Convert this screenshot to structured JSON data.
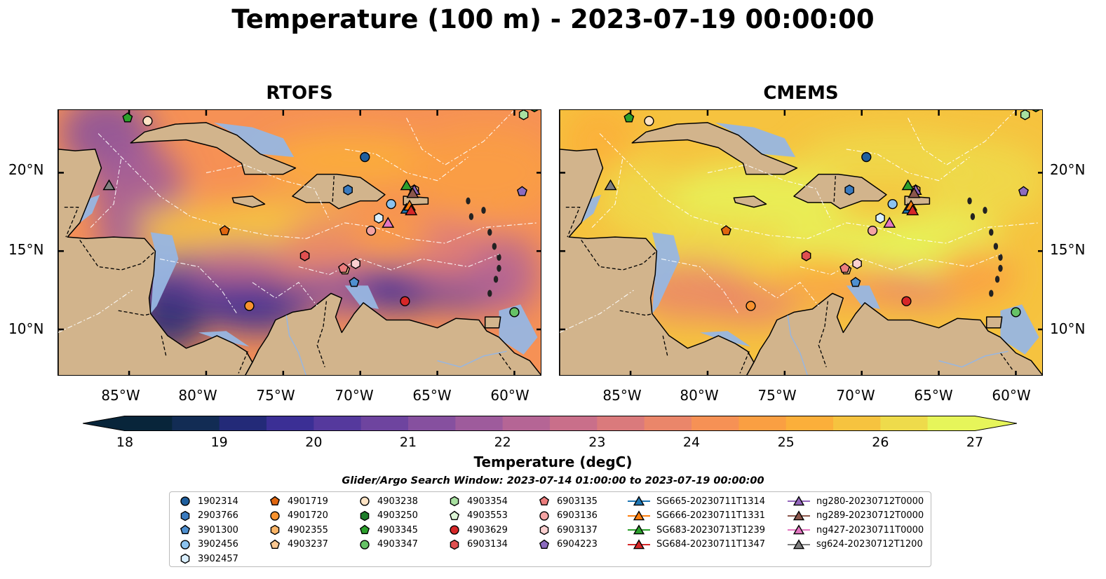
{
  "title": "Temperature (100 m) - 2023-07-19 00:00:00",
  "panels": [
    {
      "title": "RTOFS",
      "scheme": "rtofs"
    },
    {
      "title": "CMEMS",
      "scheme": "cmems"
    }
  ],
  "lat_labels": [
    "20°N",
    "15°N",
    "10°N"
  ],
  "lon_labels": [
    "85°W",
    "80°W",
    "75°W",
    "70°W",
    "65°W",
    "60°W"
  ],
  "colors": {
    "land": "#d2b48c",
    "shallow": "#97b6e1",
    "colormap": [
      "#08253a",
      "#122c54",
      "#232a78",
      "#3b2f95",
      "#55399d",
      "#6e449f",
      "#86509f",
      "#9e5b9c",
      "#b56595",
      "#c96f8a",
      "#da7a7c",
      "#ea866a",
      "#f69155",
      "#fa9f42",
      "#fbaf3a",
      "#f6c33f",
      "#eedb4b",
      "#e6f55a"
    ]
  },
  "colorbar": {
    "ticks": [
      "18",
      "19",
      "20",
      "21",
      "22",
      "23",
      "24",
      "25",
      "26",
      "27"
    ],
    "label": "Temperature (degC)"
  },
  "legend": {
    "title": "Glider/Argo Search Window: 2023-07-14 01:00:00 to 2023-07-19 00:00:00",
    "items": [
      {
        "label": "1902314",
        "marker": "circle",
        "color": "#1f5f9e",
        "type": "argo"
      },
      {
        "label": "2903766",
        "marker": "hexagon",
        "color": "#3b7bbf",
        "type": "argo"
      },
      {
        "label": "3901300",
        "marker": "pentagon",
        "color": "#4f90d0",
        "type": "argo"
      },
      {
        "label": "3902456",
        "marker": "circle",
        "color": "#8cc3ef",
        "type": "argo"
      },
      {
        "label": "3902457",
        "marker": "hexagon",
        "color": "#d9efff",
        "type": "argo"
      },
      {
        "label": "4901719",
        "marker": "pentagon",
        "color": "#e0660f",
        "type": "argo"
      },
      {
        "label": "4901720",
        "marker": "circle",
        "color": "#f8922e",
        "type": "argo"
      },
      {
        "label": "4902355",
        "marker": "hexagon",
        "color": "#fab466",
        "type": "argo"
      },
      {
        "label": "4903237",
        "marker": "pentagon",
        "color": "#fcc891",
        "type": "argo"
      },
      {
        "label": "4903238",
        "marker": "circle",
        "color": "#fee3c4",
        "type": "argo"
      },
      {
        "label": "4903250",
        "marker": "hexagon",
        "color": "#1e7d2a",
        "type": "argo"
      },
      {
        "label": "4903345",
        "marker": "pentagon",
        "color": "#2ca02c",
        "type": "argo"
      },
      {
        "label": "4903347",
        "marker": "circle",
        "color": "#66c266",
        "type": "argo"
      },
      {
        "label": "4903354",
        "marker": "hexagon",
        "color": "#a8e0a0",
        "type": "argo"
      },
      {
        "label": "4903553",
        "marker": "pentagon",
        "color": "#dcf5d6",
        "type": "argo"
      },
      {
        "label": "4903629",
        "marker": "circle",
        "color": "#d62728",
        "type": "argo"
      },
      {
        "label": "6903134",
        "marker": "hexagon",
        "color": "#e05050",
        "type": "argo"
      },
      {
        "label": "6903135",
        "marker": "pentagon",
        "color": "#ec7d7d",
        "type": "argo"
      },
      {
        "label": "6903136",
        "marker": "circle",
        "color": "#f4a3a3",
        "type": "argo"
      },
      {
        "label": "6903137",
        "marker": "hexagon",
        "color": "#fbd0d0",
        "type": "argo"
      },
      {
        "label": "6904223",
        "marker": "pentagon",
        "color": "#8c6bbf",
        "type": "argo"
      },
      {
        "label": "SG665-20230711T1314",
        "marker": "triangle",
        "color": "#1f77b4",
        "type": "glider"
      },
      {
        "label": "SG666-20230711T1331",
        "marker": "triangle",
        "color": "#ff7f0e",
        "type": "glider"
      },
      {
        "label": "SG683-20230713T1239",
        "marker": "triangle",
        "color": "#2ca02c",
        "type": "glider"
      },
      {
        "label": "SG684-20230711T1347",
        "marker": "triangle",
        "color": "#d62728",
        "type": "glider"
      },
      {
        "label": "ng280-20230712T0000",
        "marker": "triangle",
        "color": "#9467bd",
        "type": "glider"
      },
      {
        "label": "ng289-20230712T0000",
        "marker": "triangle",
        "color": "#8c564b",
        "type": "glider"
      },
      {
        "label": "ng427-20230711T0000",
        "marker": "triangle",
        "color": "#e377c2",
        "type": "glider"
      },
      {
        "label": "sg624-20230712T1200",
        "marker": "triangle",
        "color": "#7f7f7f",
        "type": "glider"
      }
    ]
  },
  "platforms": [
    {
      "label": "1902314",
      "marker": "circle",
      "color": "#1f5f9e",
      "lon": -69.7,
      "lat": 21.0
    },
    {
      "label": "2903766",
      "marker": "hexagon",
      "color": "#3b7bbf",
      "lon": -70.8,
      "lat": 18.9
    },
    {
      "label": "3901300",
      "marker": "pentagon",
      "color": "#4f90d0",
      "lon": -70.4,
      "lat": 13.0
    },
    {
      "label": "3902456",
      "marker": "circle",
      "color": "#8cc3ef",
      "lon": -68.0,
      "lat": 18.0
    },
    {
      "label": "3902457",
      "marker": "hexagon",
      "color": "#d9efff",
      "lon": -68.8,
      "lat": 17.1
    },
    {
      "label": "4901719",
      "marker": "pentagon",
      "color": "#e0660f",
      "lon": -78.8,
      "lat": 16.3
    },
    {
      "label": "4901720",
      "marker": "circle",
      "color": "#f8922e",
      "lon": -77.2,
      "lat": 11.5
    },
    {
      "label": "4902355",
      "marker": "hexagon",
      "color": "#fab466",
      "lon": -66.5,
      "lat": 18.9
    },
    {
      "label": "4903237",
      "marker": "pentagon",
      "color": "#fcc891",
      "lon": -71.0,
      "lat": 13.8
    },
    {
      "label": "4903238",
      "marker": "circle",
      "color": "#fee3c4",
      "lon": -83.8,
      "lat": 23.3
    },
    {
      "label": "4903250",
      "marker": "hexagon",
      "color": "#1e7d2a",
      "lon": -58.7,
      "lat": 24.2
    },
    {
      "label": "4903345",
      "marker": "pentagon",
      "color": "#2ca02c",
      "lon": -85.1,
      "lat": 23.5
    },
    {
      "label": "4903347",
      "marker": "circle",
      "color": "#66c266",
      "lon": -60.0,
      "lat": 11.1
    },
    {
      "label": "4903354",
      "marker": "hexagon",
      "color": "#a8e0a0",
      "lon": -59.4,
      "lat": 23.7
    },
    {
      "label": "4903553",
      "marker": "pentagon",
      "color": "#dcf5d6",
      "lon": -62.5,
      "lat": 24.6
    },
    {
      "label": "4903629",
      "marker": "circle",
      "color": "#d62728",
      "lon": -67.1,
      "lat": 11.8
    },
    {
      "label": "6903134",
      "marker": "hexagon",
      "color": "#e05050",
      "lon": -73.6,
      "lat": 14.7
    },
    {
      "label": "6903135",
      "marker": "pentagon",
      "color": "#ec7d7d",
      "lon": -71.1,
      "lat": 13.9
    },
    {
      "label": "6903136",
      "marker": "circle",
      "color": "#f4a3a3",
      "lon": -69.3,
      "lat": 16.3
    },
    {
      "label": "6903137",
      "marker": "hexagon",
      "color": "#fbd0d0",
      "lon": -70.3,
      "lat": 14.2
    },
    {
      "label": "6904223",
      "marker": "pentagon",
      "color": "#8c6bbf",
      "lon": -59.5,
      "lat": 18.8
    },
    {
      "label": "SG665-20230711T1314",
      "marker": "triangle",
      "color": "#1f77b4",
      "lon": -67.0,
      "lat": 17.7
    },
    {
      "label": "SG666-20230711T1331",
      "marker": "triangle",
      "color": "#ff7f0e",
      "lon": -66.8,
      "lat": 17.9
    },
    {
      "label": "SG683-20230713T1239",
      "marker": "triangle",
      "color": "#2ca02c",
      "lon": -67.0,
      "lat": 19.2
    },
    {
      "label": "SG684-20230711T1347",
      "marker": "triangle",
      "color": "#d62728",
      "lon": -66.7,
      "lat": 17.6
    },
    {
      "label": "ng280-20230712T0000",
      "marker": "triangle",
      "color": "#9467bd",
      "lon": -66.5,
      "lat": 18.9
    },
    {
      "label": "ng289-20230712T0000",
      "marker": "triangle",
      "color": "#8c564b",
      "lon": -66.6,
      "lat": 18.7
    },
    {
      "label": "ng427-20230711T0000",
      "marker": "triangle",
      "color": "#e377c2",
      "lon": -68.2,
      "lat": 16.8
    },
    {
      "label": "sg624-20230712T1200",
      "marker": "triangle",
      "color": "#7f7f7f",
      "lon": -86.3,
      "lat": 19.2
    }
  ]
}
